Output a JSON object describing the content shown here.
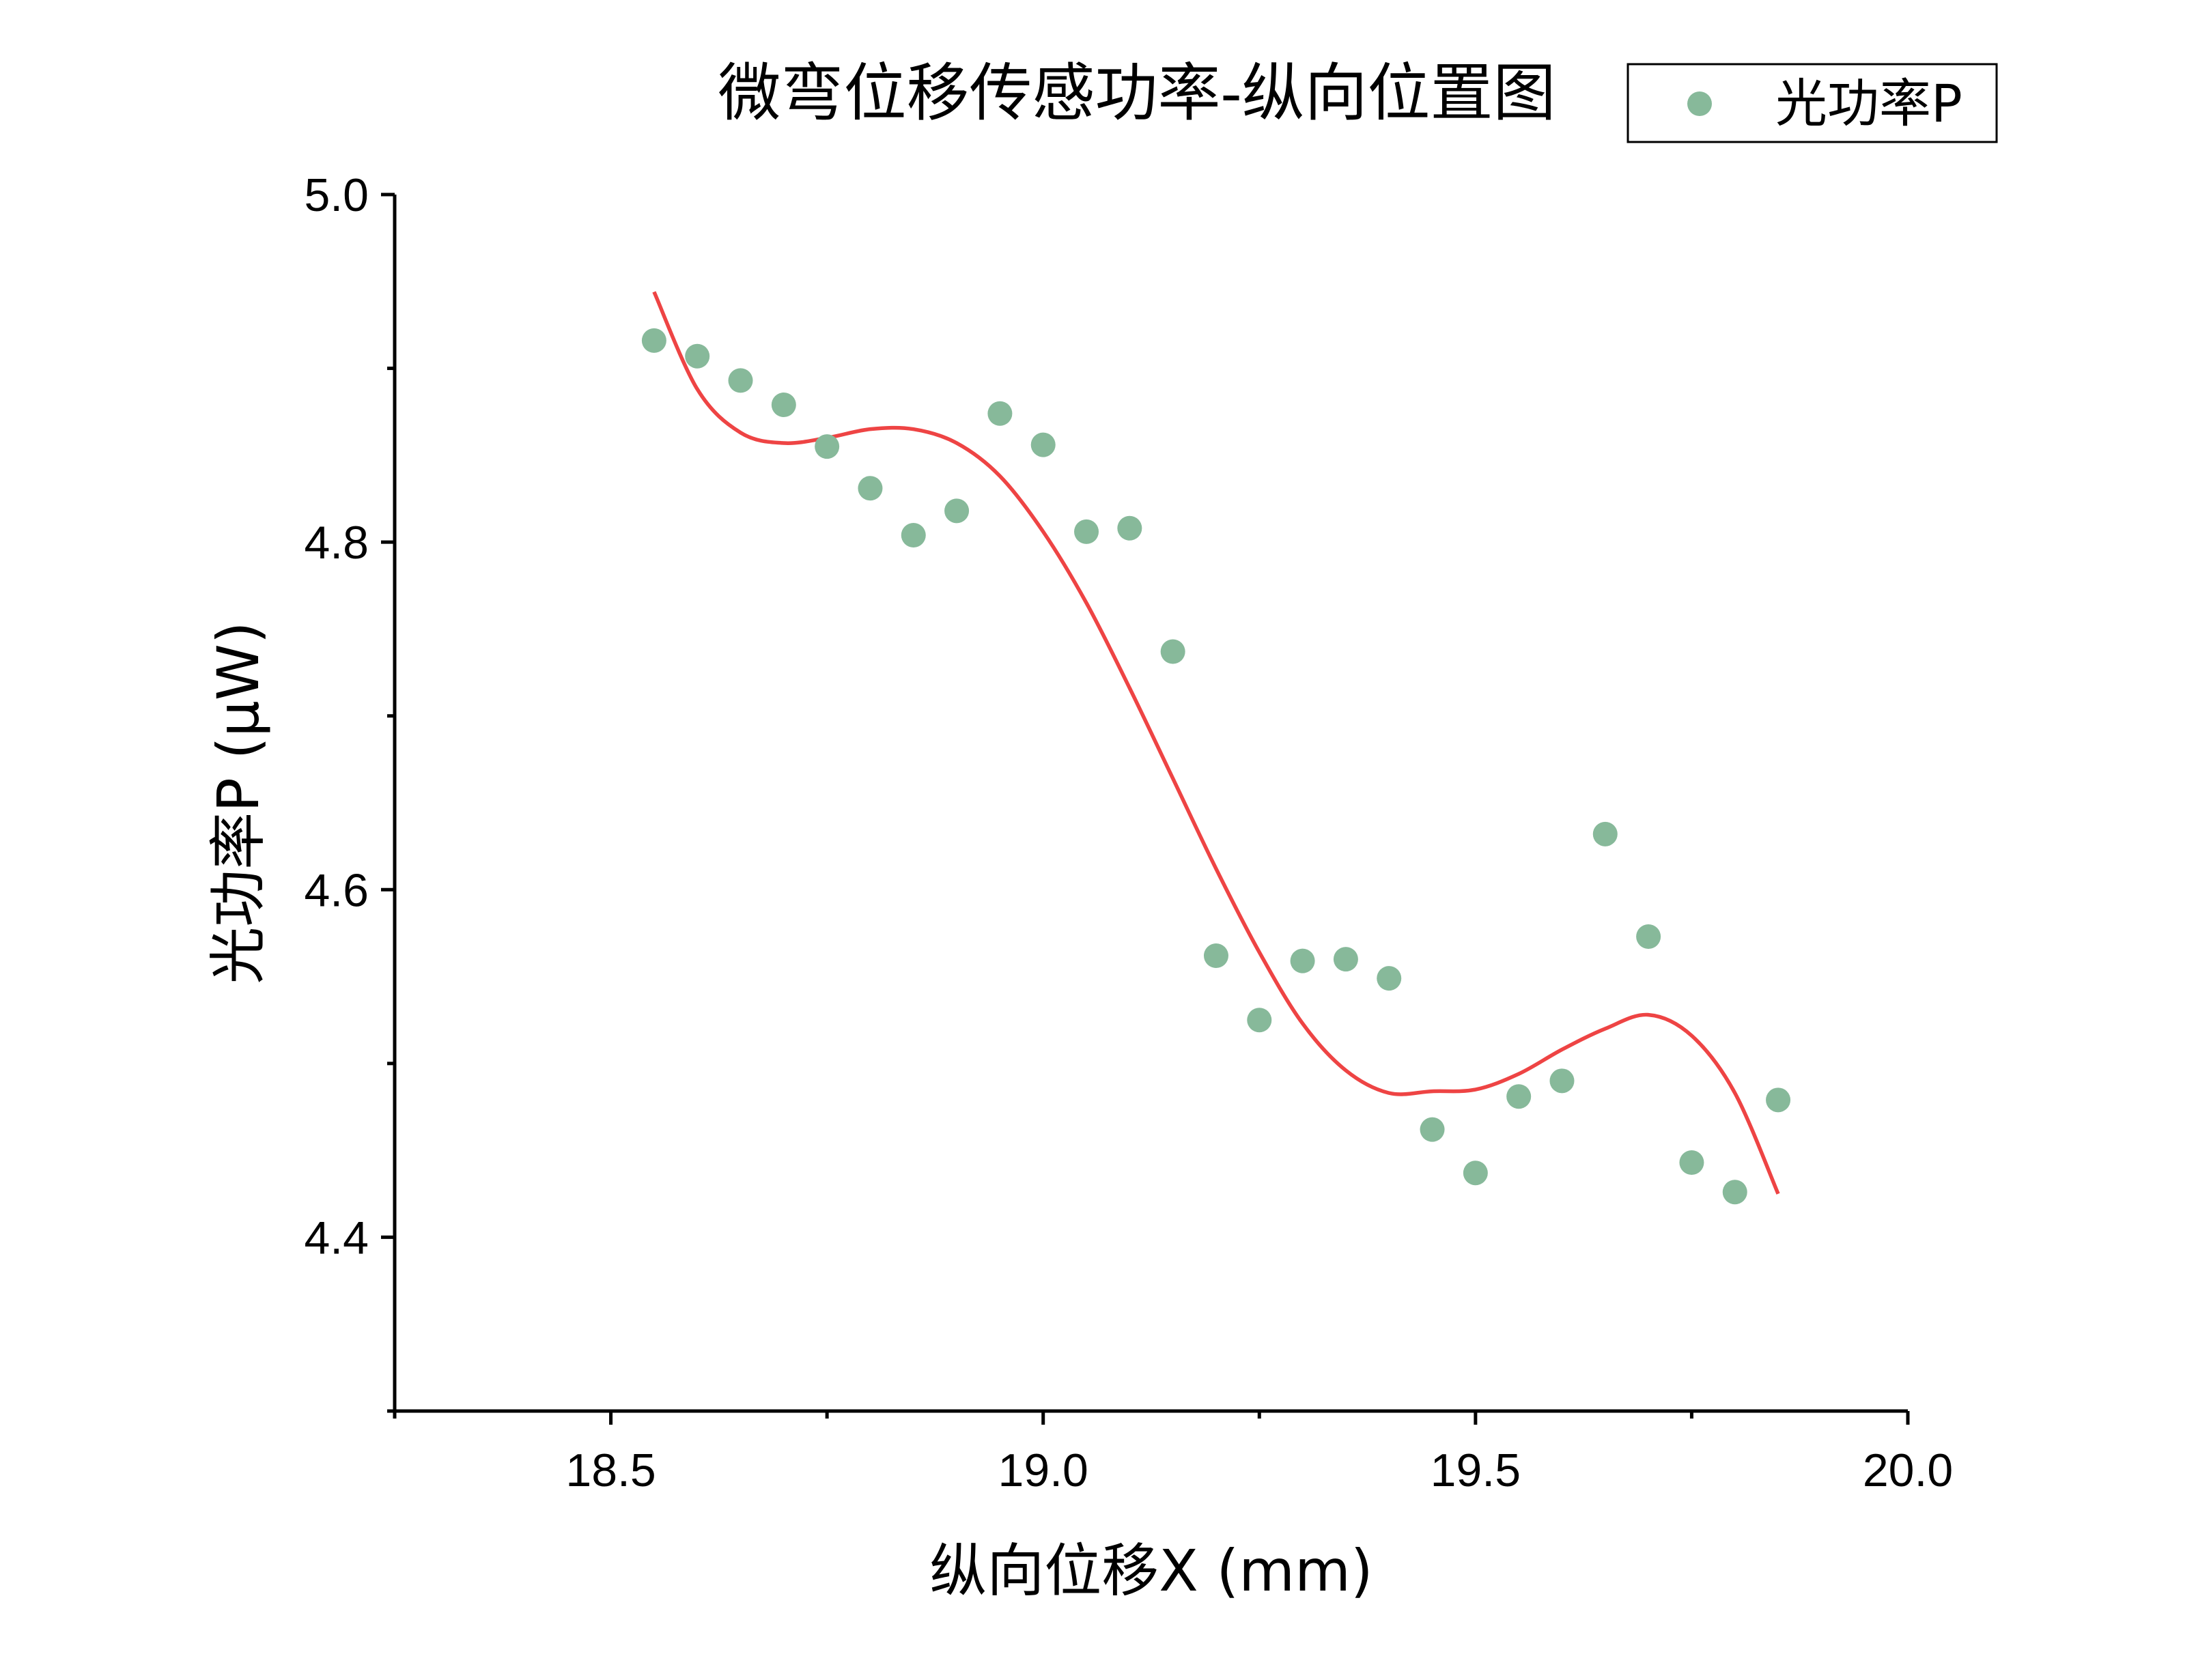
{
  "chart_data": {
    "type": "scatter",
    "title": "微弯位移传感功率-纵向位置图",
    "xlabel": "纵向位移X (mm)",
    "ylabel": "光功率P (μW)",
    "xlim": [
      18.25,
      20.0
    ],
    "ylim": [
      4.3,
      5.0
    ],
    "x_ticks": [
      "18.5",
      "19.0",
      "19.5",
      "20.0"
    ],
    "x_tick_values": [
      18.5,
      19.0,
      19.5,
      20.0
    ],
    "y_ticks": [
      "4.4",
      "4.6",
      "4.8",
      "5.0"
    ],
    "y_tick_values": [
      4.4,
      4.6,
      4.8,
      5.0
    ],
    "legend_position": "top-right",
    "series": [
      {
        "name": "光功率P",
        "kind": "scatter",
        "color": "#87b99a",
        "x": [
          18.55,
          18.6,
          18.65,
          18.7,
          18.75,
          18.8,
          18.85,
          18.9,
          18.95,
          19.0,
          19.05,
          19.1,
          19.15,
          19.2,
          19.25,
          19.3,
          19.35,
          19.4,
          19.45,
          19.5,
          19.55,
          19.6,
          19.65,
          19.7,
          19.75,
          19.8,
          19.85
        ],
        "y": [
          4.916,
          4.907,
          4.893,
          4.879,
          4.855,
          4.831,
          4.804,
          4.818,
          4.874,
          4.856,
          4.806,
          4.808,
          4.737,
          4.562,
          4.525,
          4.559,
          4.56,
          4.549,
          4.462,
          4.437,
          4.481,
          4.49,
          4.632,
          4.573,
          4.443,
          4.426,
          4.479
        ]
      },
      {
        "kind": "line",
        "color": "#ee4444",
        "x": [
          18.55,
          18.6,
          18.65,
          18.7,
          18.75,
          18.8,
          18.85,
          18.9,
          18.95,
          19.0,
          19.05,
          19.1,
          19.15,
          19.2,
          19.25,
          19.3,
          19.35,
          19.4,
          19.45,
          19.5,
          19.55,
          19.6,
          19.65,
          19.7,
          19.75,
          19.8,
          19.85
        ],
        "y": [
          4.944,
          4.888,
          4.863,
          4.857,
          4.86,
          4.865,
          4.865,
          4.857,
          4.838,
          4.806,
          4.765,
          4.716,
          4.664,
          4.612,
          4.564,
          4.523,
          4.496,
          4.483,
          4.484,
          4.485,
          4.494,
          4.508,
          4.52,
          4.528,
          4.516,
          4.483,
          4.425
        ]
      }
    ]
  }
}
